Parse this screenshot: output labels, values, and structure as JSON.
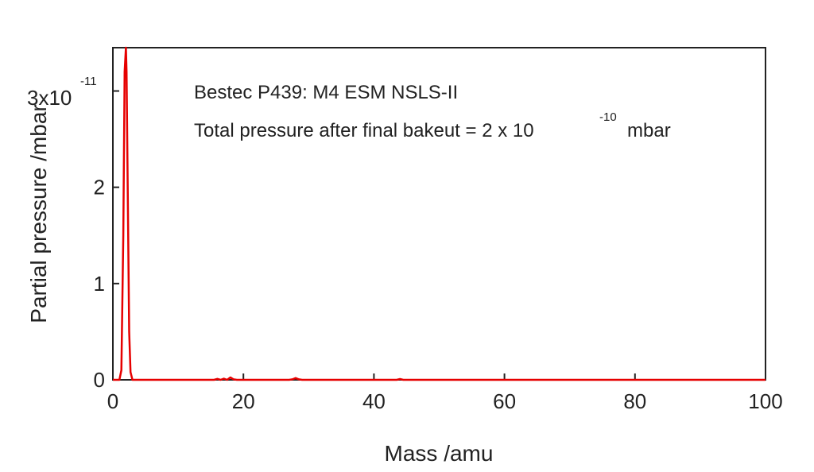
{
  "chart_data": {
    "type": "line",
    "xlabel": "Mass /amu",
    "ylabel": "Partial pressure /mbar",
    "xlim": [
      0,
      100
    ],
    "ylim": [
      0,
      3.45e-11
    ],
    "xticks": [
      0,
      20,
      40,
      60,
      80,
      100
    ],
    "xtick_labels": [
      "0",
      "20",
      "40",
      "60",
      "80",
      "100"
    ],
    "yticks": [
      0,
      1e-11,
      2e-11,
      3e-11
    ],
    "ytick_labels": [
      "0",
      "1",
      "2",
      "3"
    ],
    "y_multiplier": {
      "base": "3x10",
      "exponent": "-11"
    },
    "grid": false,
    "legend": "none",
    "annotations": {
      "line1": "Bestec P439: M4 ESM NSLS-II",
      "line2_prefix": "Total pressure after final bakeut = 2 x 10",
      "line2_exponent": "-10",
      "line2_suffix": "mbar"
    },
    "series": [
      {
        "color": "#e60000",
        "x": [
          0,
          1.0,
          1.3,
          1.6,
          1.8,
          2.0,
          2.1,
          2.3,
          2.5,
          2.7,
          3.0,
          3.5,
          10,
          15.5,
          16,
          16.5,
          17,
          17.5,
          18,
          18.5,
          19,
          20,
          27,
          27.5,
          28,
          28.5,
          29,
          43.5,
          44,
          44.5,
          60,
          80,
          100
        ],
        "y": [
          0,
          0,
          1e-12,
          1.5e-11,
          3.2e-11,
          3.45e-11,
          3.2e-11,
          1.8e-11,
          5e-12,
          8e-13,
          0,
          0,
          0,
          0,
          1e-13,
          0,
          1.2e-13,
          0,
          2.5e-13,
          5e-14,
          0,
          0,
          0,
          5e-14,
          1.8e-13,
          5e-14,
          0,
          0,
          8e-14,
          0,
          0,
          0,
          0
        ]
      }
    ]
  }
}
